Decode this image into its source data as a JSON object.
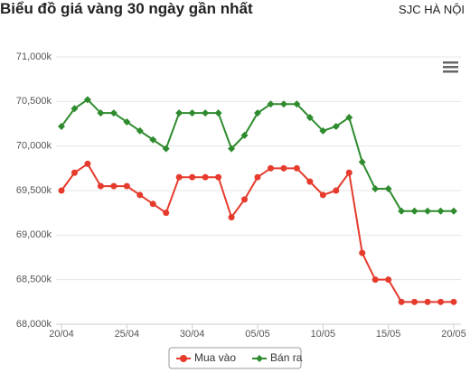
{
  "header": {
    "title": "Biểu đồ giá vàng 30 ngày gần nhất",
    "source": "SJC HÀ NỘI"
  },
  "chart_data": {
    "type": "line",
    "categories": [
      "20/04",
      null,
      null,
      null,
      null,
      "25/04",
      null,
      null,
      null,
      null,
      "30/04",
      null,
      null,
      null,
      null,
      "05/05",
      null,
      null,
      null,
      null,
      "10/05",
      null,
      null,
      null,
      null,
      "15/05",
      null,
      null,
      null,
      null,
      "20/05"
    ],
    "series": [
      {
        "name": "Mua vào",
        "color": "#e53a2c",
        "marker": "circle",
        "values": [
          69500,
          69700,
          69800,
          69550,
          69550,
          69550,
          69450,
          69350,
          69250,
          69650,
          69650,
          69650,
          69650,
          69200,
          69400,
          69650,
          69750,
          69750,
          69750,
          69600,
          69450,
          69500,
          69700,
          68800,
          68500,
          68500,
          68250,
          68250,
          68250,
          68250,
          68250
        ]
      },
      {
        "name": "Bán ra",
        "color": "#2e8b2e",
        "marker": "diamond",
        "values": [
          70220,
          70420,
          70520,
          70370,
          70370,
          70270,
          70170,
          70070,
          69970,
          70370,
          70370,
          70370,
          70370,
          69970,
          70120,
          70370,
          70470,
          70470,
          70470,
          70320,
          70170,
          70220,
          70320,
          69820,
          69520,
          69520,
          69270,
          69270,
          69270,
          69270,
          69270
        ]
      }
    ],
    "ylim": [
      68000,
      71000
    ],
    "yticks": [
      {
        "value": 68000,
        "label": "68,000k"
      },
      {
        "value": 68500,
        "label": "68,500k"
      },
      {
        "value": 69000,
        "label": "69,000k"
      },
      {
        "value": 69500,
        "label": "69,500k"
      },
      {
        "value": 70000,
        "label": "70,000k"
      },
      {
        "value": 70500,
        "label": "70,500k"
      },
      {
        "value": 71000,
        "label": "71,000k"
      }
    ],
    "grid": true
  }
}
